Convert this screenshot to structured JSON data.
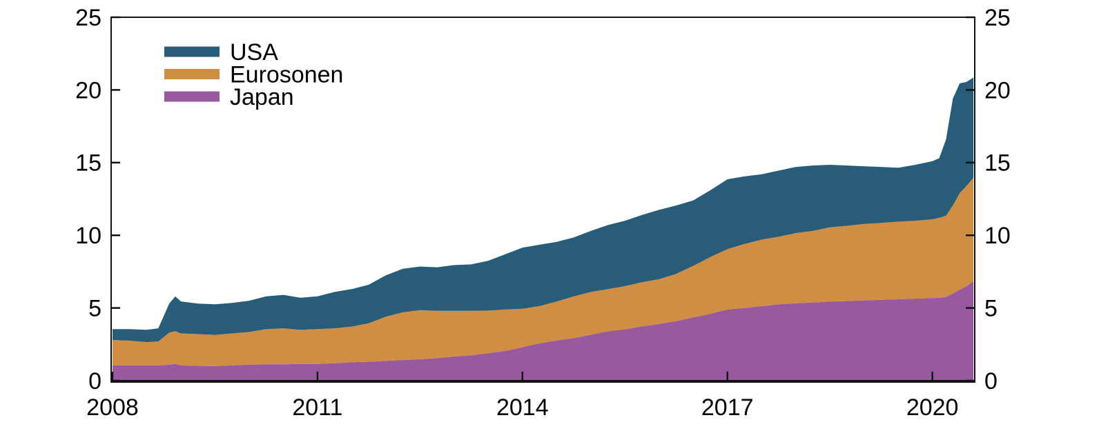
{
  "chart_data": {
    "type": "area",
    "stacked": true,
    "title": "",
    "xlabel": "",
    "ylabel": "",
    "xlim": [
      2007.98,
      2020.62
    ],
    "ylim": [
      0,
      25
    ],
    "x_ticks": [
      2008,
      2011,
      2014,
      2017,
      2020
    ],
    "y_ticks": [
      0,
      5,
      10,
      15,
      20,
      25
    ],
    "y_axis_sides": [
      "left",
      "right"
    ],
    "grid": false,
    "legend_position": "top-left",
    "legend_order": [
      "USA",
      "Eurosonen",
      "Japan"
    ],
    "axis_color": "#111111",
    "label_color": "#000000",
    "x": [
      2008.0,
      2008.25,
      2008.5,
      2008.67,
      2008.83,
      2008.92,
      2009.0,
      2009.25,
      2009.5,
      2009.75,
      2010.0,
      2010.25,
      2010.5,
      2010.75,
      2011.0,
      2011.25,
      2011.5,
      2011.75,
      2012.0,
      2012.25,
      2012.5,
      2012.75,
      2013.0,
      2013.25,
      2013.5,
      2013.75,
      2014.0,
      2014.25,
      2014.5,
      2014.75,
      2015.0,
      2015.25,
      2015.5,
      2015.75,
      2016.0,
      2016.25,
      2016.5,
      2016.75,
      2017.0,
      2017.25,
      2017.5,
      2017.75,
      2018.0,
      2018.25,
      2018.5,
      2018.75,
      2019.0,
      2019.25,
      2019.5,
      2019.75,
      2020.0,
      2020.1,
      2020.2,
      2020.3,
      2020.4,
      2020.5,
      2020.6
    ],
    "series": [
      {
        "name": "Japan",
        "color": "#99599f",
        "values": [
          1.05,
          1.05,
          1.05,
          1.05,
          1.1,
          1.15,
          1.05,
          1.02,
          1.0,
          1.05,
          1.1,
          1.12,
          1.13,
          1.15,
          1.15,
          1.2,
          1.27,
          1.3,
          1.36,
          1.42,
          1.47,
          1.55,
          1.66,
          1.75,
          1.89,
          2.05,
          2.3,
          2.57,
          2.77,
          2.92,
          3.16,
          3.4,
          3.53,
          3.74,
          3.9,
          4.1,
          4.35,
          4.6,
          4.9,
          5.0,
          5.13,
          5.25,
          5.32,
          5.38,
          5.44,
          5.48,
          5.52,
          5.56,
          5.6,
          5.64,
          5.68,
          5.7,
          5.75,
          6.0,
          6.25,
          6.5,
          6.85
        ]
      },
      {
        "name": "Eurosonen",
        "color": "#cf8e44",
        "values": [
          1.75,
          1.7,
          1.6,
          1.65,
          2.2,
          2.25,
          2.2,
          2.18,
          2.15,
          2.2,
          2.25,
          2.43,
          2.47,
          2.35,
          2.4,
          2.4,
          2.45,
          2.65,
          3.04,
          3.28,
          3.38,
          3.25,
          3.14,
          3.05,
          2.93,
          2.85,
          2.65,
          2.56,
          2.67,
          2.87,
          2.94,
          2.9,
          2.97,
          3.03,
          3.08,
          3.25,
          3.55,
          3.9,
          4.15,
          4.4,
          4.57,
          4.65,
          4.83,
          4.92,
          5.11,
          5.17,
          5.26,
          5.29,
          5.34,
          5.36,
          5.42,
          5.5,
          5.6,
          6.05,
          6.65,
          6.9,
          7.1
        ]
      },
      {
        "name": "USA",
        "color": "#275d78",
        "values": [
          0.75,
          0.8,
          0.85,
          0.9,
          2.0,
          2.4,
          2.2,
          2.1,
          2.1,
          2.1,
          2.15,
          2.25,
          2.3,
          2.2,
          2.25,
          2.5,
          2.58,
          2.65,
          2.85,
          3.0,
          3.0,
          3.0,
          3.15,
          3.2,
          3.43,
          3.8,
          4.2,
          4.22,
          4.11,
          4.06,
          4.2,
          4.4,
          4.5,
          4.63,
          4.77,
          4.7,
          4.5,
          4.6,
          4.8,
          4.65,
          4.5,
          4.55,
          4.55,
          4.5,
          4.3,
          4.15,
          3.97,
          3.85,
          3.71,
          3.85,
          4.0,
          4.1,
          5.25,
          7.35,
          7.55,
          7.15,
          6.9
        ]
      }
    ]
  }
}
